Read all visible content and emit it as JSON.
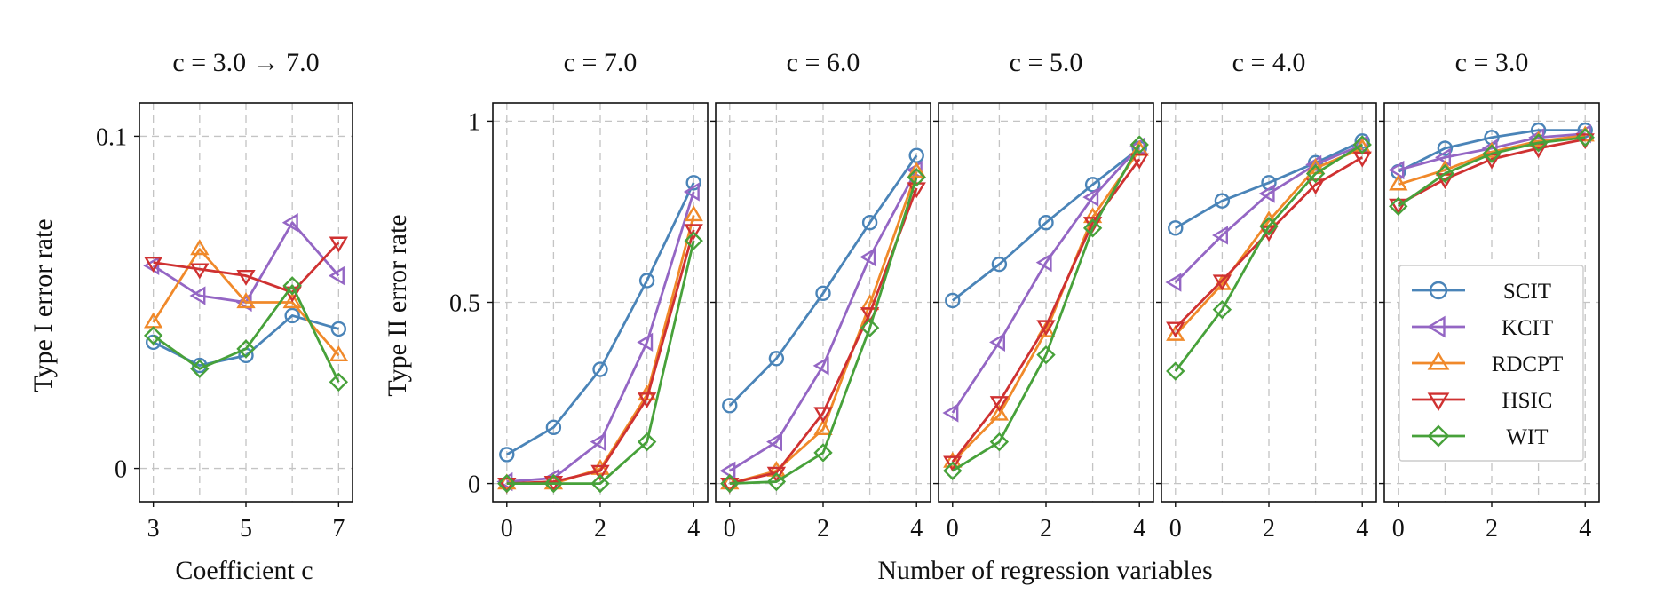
{
  "colors": {
    "SCIT": "#4a84b8",
    "KCIT": "#9466c4",
    "RDCPT": "#f0892a",
    "HSIC": "#cf3131",
    "WIT": "#47a13a"
  },
  "markers": {
    "SCIT": "circle",
    "KCIT": "triangle-left",
    "RDCPT": "triangle-up",
    "HSIC": "triangle-down",
    "WIT": "diamond"
  },
  "legend": {
    "entries": [
      "SCIT",
      "KCIT",
      "RDCPT",
      "HSIC",
      "WIT"
    ],
    "panel": 5,
    "placement": "right"
  },
  "labels": {
    "panel1_ylabel": "Type I error rate",
    "panel1_xlabel": "Coefficient c",
    "panels_ylabel": "Type II error rate",
    "panels_xlabel": "Number of regression variables"
  },
  "chart_data": [
    {
      "type": "line",
      "title": "c = 3.0 → 7.0",
      "xlabel": "Coefficient c",
      "ylabel": "Type I error rate",
      "x": [
        3,
        4,
        5,
        6,
        7
      ],
      "xticks": [
        3,
        5,
        7
      ],
      "yticks": [
        0,
        0.1
      ],
      "ytick_labels": [
        "0",
        "0.1"
      ],
      "xlim": [
        2.7,
        7.3
      ],
      "ylim": [
        -0.01,
        0.11
      ],
      "grid": true,
      "series": [
        {
          "name": "SCIT",
          "values": [
            0.038,
            0.031,
            0.034,
            0.046,
            0.042
          ]
        },
        {
          "name": "KCIT",
          "values": [
            0.061,
            0.052,
            0.05,
            0.074,
            0.058
          ]
        },
        {
          "name": "RDCPT",
          "values": [
            0.044,
            0.066,
            0.05,
            0.05,
            0.034
          ]
        },
        {
          "name": "HSIC",
          "values": [
            0.062,
            0.06,
            0.058,
            0.053,
            0.068
          ]
        },
        {
          "name": "WIT",
          "values": [
            0.04,
            0.03,
            0.036,
            0.055,
            0.026
          ]
        }
      ]
    },
    {
      "type": "line",
      "title": "c = 7.0",
      "ylabel": "Type II error rate",
      "x": [
        0,
        1,
        2,
        3,
        4
      ],
      "xticks": [
        0,
        2,
        4
      ],
      "yticks": [
        0,
        0.5,
        1
      ],
      "ytick_labels": [
        "0",
        "0.5",
        "1"
      ],
      "xlim": [
        -0.3,
        4.3
      ],
      "ylim": [
        -0.05,
        1.05
      ],
      "grid": true,
      "series": [
        {
          "name": "SCIT",
          "values": [
            0.08,
            0.155,
            0.315,
            0.56,
            0.83
          ]
        },
        {
          "name": "KCIT",
          "values": [
            0.005,
            0.015,
            0.115,
            0.39,
            0.805
          ]
        },
        {
          "name": "RDCPT",
          "values": [
            0.0,
            0.0,
            0.04,
            0.245,
            0.74
          ]
        },
        {
          "name": "HSIC",
          "values": [
            0.0,
            0.005,
            0.035,
            0.235,
            0.7
          ]
        },
        {
          "name": "WIT",
          "values": [
            0.0,
            0.0,
            0.0,
            0.115,
            0.67
          ]
        }
      ]
    },
    {
      "type": "line",
      "title": "c = 6.0",
      "x": [
        0,
        1,
        2,
        3,
        4
      ],
      "xticks": [
        0,
        2,
        4
      ],
      "xlim": [
        -0.3,
        4.3
      ],
      "ylim": [
        -0.05,
        1.05
      ],
      "grid": true,
      "series": [
        {
          "name": "SCIT",
          "values": [
            0.215,
            0.345,
            0.525,
            0.72,
            0.905
          ]
        },
        {
          "name": "KCIT",
          "values": [
            0.035,
            0.115,
            0.325,
            0.625,
            0.865
          ]
        },
        {
          "name": "RDCPT",
          "values": [
            0.0,
            0.035,
            0.15,
            0.495,
            0.86
          ]
        },
        {
          "name": "HSIC",
          "values": [
            0.0,
            0.03,
            0.195,
            0.47,
            0.815
          ]
        },
        {
          "name": "WIT",
          "values": [
            0.0,
            0.005,
            0.085,
            0.43,
            0.845
          ]
        }
      ]
    },
    {
      "type": "line",
      "title": "c = 5.0",
      "x": [
        0,
        1,
        2,
        3,
        4
      ],
      "xticks": [
        0,
        2,
        4
      ],
      "xlim": [
        -0.3,
        4.3
      ],
      "ylim": [
        -0.05,
        1.05
      ],
      "grid": true,
      "series": [
        {
          "name": "SCIT",
          "values": [
            0.505,
            0.605,
            0.72,
            0.825,
            0.925
          ]
        },
        {
          "name": "KCIT",
          "values": [
            0.195,
            0.39,
            0.61,
            0.79,
            0.93
          ]
        },
        {
          "name": "RDCPT",
          "values": [
            0.06,
            0.19,
            0.42,
            0.735,
            0.92
          ]
        },
        {
          "name": "HSIC",
          "values": [
            0.06,
            0.225,
            0.435,
            0.72,
            0.895
          ]
        },
        {
          "name": "WIT",
          "values": [
            0.035,
            0.115,
            0.355,
            0.705,
            0.935
          ]
        }
      ]
    },
    {
      "type": "line",
      "title": "c = 4.0",
      "x": [
        0,
        1,
        2,
        3,
        4
      ],
      "xticks": [
        0,
        2,
        4
      ],
      "xlim": [
        -0.3,
        4.3
      ],
      "ylim": [
        -0.05,
        1.05
      ],
      "grid": true,
      "series": [
        {
          "name": "SCIT",
          "values": [
            0.705,
            0.78,
            0.83,
            0.885,
            0.945
          ]
        },
        {
          "name": "KCIT",
          "values": [
            0.555,
            0.685,
            0.8,
            0.88,
            0.935
          ]
        },
        {
          "name": "RDCPT",
          "values": [
            0.41,
            0.55,
            0.725,
            0.87,
            0.925
          ]
        },
        {
          "name": "HSIC",
          "values": [
            0.43,
            0.56,
            0.695,
            0.825,
            0.9
          ]
        },
        {
          "name": "WIT",
          "values": [
            0.31,
            0.48,
            0.71,
            0.855,
            0.935
          ]
        }
      ]
    },
    {
      "type": "line",
      "title": "c = 3.0",
      "x": [
        0,
        1,
        2,
        3,
        4
      ],
      "xticks": [
        0,
        2,
        4
      ],
      "xlim": [
        -0.3,
        4.3
      ],
      "ylim": [
        -0.05,
        1.05
      ],
      "grid": true,
      "series": [
        {
          "name": "SCIT",
          "values": [
            0.86,
            0.925,
            0.955,
            0.975,
            0.975
          ]
        },
        {
          "name": "KCIT",
          "values": [
            0.865,
            0.9,
            0.925,
            0.955,
            0.965
          ]
        },
        {
          "name": "RDCPT",
          "values": [
            0.825,
            0.865,
            0.915,
            0.945,
            0.96
          ]
        },
        {
          "name": "HSIC",
          "values": [
            0.77,
            0.84,
            0.895,
            0.925,
            0.95
          ]
        },
        {
          "name": "WIT",
          "values": [
            0.765,
            0.855,
            0.91,
            0.94,
            0.955
          ]
        }
      ]
    }
  ]
}
